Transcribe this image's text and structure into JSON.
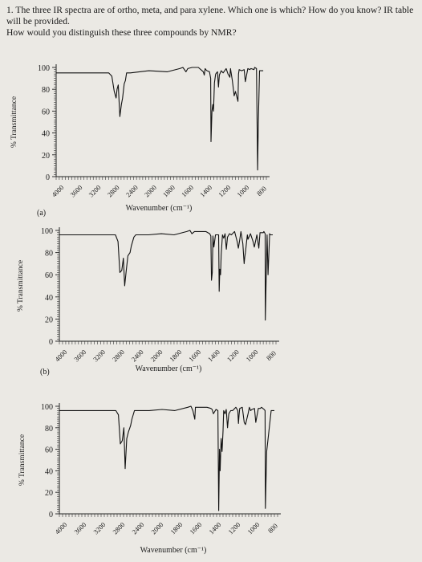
{
  "question": {
    "line1": "1. The three IR spectra are of ortho, meta, and para xylene. Which one is which? How do you know? IR table will be provided.",
    "line2": "How would you distinguish these three compounds by NMR?"
  },
  "chart_data": [
    {
      "type": "line",
      "panel_label": "(a)",
      "xlabel": "Wavenumber (cm⁻¹)",
      "ylabel": "% Transmittance",
      "xlim": [
        4000,
        600
      ],
      "ylim": [
        0,
        100
      ],
      "x_ticks": [
        "4000",
        "3600",
        "3200",
        "2800",
        "2400",
        "2000",
        "1800",
        "1600",
        "1400",
        "1200",
        "1000",
        "800"
      ],
      "y_ticks": [
        "0",
        "20",
        "40",
        "60",
        "80",
        "100"
      ],
      "series": [
        {
          "x": [
            4000,
            3800,
            3400,
            3150,
            3100,
            3060,
            3030,
            3015,
            2995,
            2970,
            2945,
            2925,
            2900,
            2880,
            2860,
            2800,
            2500,
            2200,
            2000,
            1950,
            1900,
            1870,
            1800,
            1700,
            1640,
            1620,
            1605,
            1590,
            1580,
            1560,
            1520,
            1500,
            1495,
            1480,
            1465,
            1455,
            1440,
            1420,
            1390,
            1375,
            1360,
            1330,
            1300,
            1250,
            1220,
            1200,
            1190,
            1180,
            1150,
            1120,
            1100,
            1060,
            1050,
            1040,
            1000,
            960,
            940,
            900,
            870,
            850,
            800,
            790,
            760,
            742,
            730,
            710,
            690,
            650
          ],
          "y": [
            95,
            95,
            95,
            95,
            92,
            78,
            72,
            80,
            84,
            55,
            66,
            72,
            85,
            88,
            95,
            95,
            97,
            96,
            99,
            100,
            96,
            99,
            100,
            100,
            97,
            96,
            93,
            99,
            98,
            97,
            96,
            90,
            32,
            60,
            66,
            60,
            86,
            94,
            96,
            82,
            93,
            97,
            95,
            99,
            94,
            92,
            91,
            99,
            88,
            74,
            78,
            69,
            94,
            98,
            97,
            98,
            87,
            99,
            98,
            99,
            98,
            100,
            99,
            6,
            50,
            97,
            97,
            97
          ]
        }
      ]
    },
    {
      "type": "line",
      "panel_label": "(b)",
      "xlabel": "Wavenumber (cm⁻¹)",
      "ylabel": "% Transmittance",
      "xlim": [
        4000,
        600
      ],
      "ylim": [
        0,
        100
      ],
      "x_ticks": [
        "4000",
        "3600",
        "3200",
        "2800",
        "2400",
        "2000",
        "1800",
        "1600",
        "1400",
        "1200",
        "1000",
        "800"
      ],
      "y_ticks": [
        "0",
        "20",
        "40",
        "60",
        "80",
        "100"
      ],
      "series": [
        {
          "x": [
            4000,
            3800,
            3400,
            3120,
            3080,
            3050,
            3020,
            2995,
            2975,
            2950,
            2925,
            2890,
            2870,
            2830,
            2800,
            2600,
            2400,
            2200,
            2000,
            1950,
            1920,
            1880,
            1800,
            1700,
            1640,
            1622,
            1612,
            1600,
            1590,
            1575,
            1550,
            1500,
            1492,
            1482,
            1470,
            1460,
            1440,
            1420,
            1400,
            1380,
            1360,
            1330,
            1300,
            1250,
            1210,
            1190,
            1170,
            1150,
            1120,
            1100,
            1090,
            1080,
            1050,
            1040,
            1000,
            960,
            940,
            900,
            870,
            850,
            800,
            790,
            770,
            768,
            740,
            725,
            700,
            690,
            650
          ],
          "y": [
            96,
            96,
            96,
            96,
            90,
            62,
            64,
            75,
            50,
            64,
            77,
            80,
            86,
            94,
            96,
            96,
            97,
            96,
            99,
            100,
            97,
            99,
            99,
            99,
            97,
            95,
            55,
            62,
            95,
            85,
            96,
            96,
            45,
            65,
            60,
            78,
            96,
            93,
            97,
            83,
            94,
            97,
            96,
            99,
            90,
            84,
            91,
            99,
            88,
            70,
            76,
            80,
            96,
            92,
            97,
            90,
            85,
            96,
            84,
            98,
            98,
            99,
            97,
            19,
            96,
            60,
            97,
            96,
            96
          ]
        }
      ]
    },
    {
      "type": "line",
      "panel_label": "",
      "xlabel": "Wavenumber (cm⁻¹)",
      "ylabel": "% Transmittance",
      "xlim": [
        4000,
        600
      ],
      "ylim": [
        0,
        100
      ],
      "x_ticks": [
        "4000",
        "3600",
        "3200",
        "2800",
        "2400",
        "2000",
        "1800",
        "1600",
        "1400",
        "1200",
        "1000",
        "800"
      ],
      "y_ticks": [
        "0",
        "20",
        "40",
        "60",
        "80",
        "100"
      ],
      "series": [
        {
          "x": [
            4000,
            3800,
            3400,
            3120,
            3080,
            3050,
            3020,
            2995,
            2975,
            2950,
            2925,
            2890,
            2870,
            2830,
            2800,
            2600,
            2400,
            2200,
            2000,
            1950,
            1920,
            1890,
            1880,
            1800,
            1700,
            1640,
            1620,
            1600,
            1560,
            1530,
            1518,
            1505,
            1495,
            1480,
            1465,
            1450,
            1440,
            1420,
            1400,
            1380,
            1360,
            1330,
            1300,
            1250,
            1220,
            1210,
            1200,
            1190,
            1150,
            1120,
            1100,
            1060,
            1040,
            1020,
            1000,
            960,
            940,
            900,
            870,
            850,
            830,
            810,
            795,
            790,
            770,
            700,
            650
          ],
          "y": [
            96,
            96,
            96,
            96,
            92,
            65,
            68,
            80,
            42,
            70,
            76,
            82,
            88,
            96,
            96,
            96,
            97,
            96,
            99,
            100,
            96,
            88,
            99,
            99,
            99,
            98,
            97,
            93,
            97,
            96,
            3,
            60,
            40,
            70,
            58,
            77,
            96,
            93,
            97,
            80,
            93,
            96,
            96,
            99,
            96,
            84,
            92,
            98,
            99,
            85,
            83,
            93,
            99,
            96,
            97,
            98,
            85,
            98,
            98,
            99,
            98,
            97,
            96,
            5,
            58,
            96,
            96
          ]
        }
      ]
    }
  ]
}
